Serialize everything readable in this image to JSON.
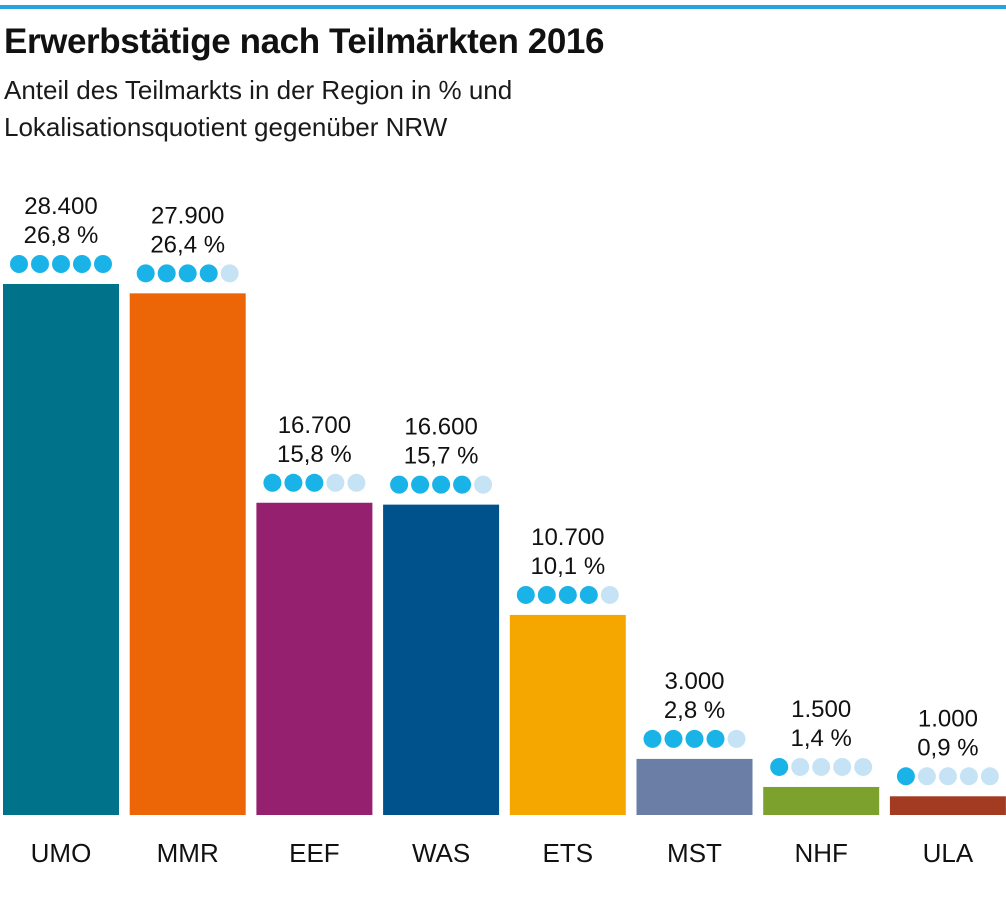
{
  "title": "Erwerbstätige nach Teilmärkten 2016",
  "subtitle_line1": "Anteil des Teilmarkts in der Region in % und",
  "subtitle_line2": "Lokalisationsquotient gegenüber NRW",
  "colors": {
    "accent_rule": "#29a3dd",
    "dot_full": "#1ab3e8",
    "dot_empty": "#c6e3f5"
  },
  "chart_data": {
    "type": "bar",
    "categories": [
      "UMO",
      "MMR",
      "EEF",
      "WAS",
      "ETS",
      "MST",
      "NHF",
      "ULA"
    ],
    "values": [
      28400,
      27900,
      16700,
      16600,
      10700,
      3000,
      1500,
      1000
    ],
    "value_labels": [
      "28.400",
      "27.900",
      "16.700",
      "16.600",
      "10.700",
      "3.000",
      "1.500",
      "1.000"
    ],
    "percent_labels": [
      "26,8 %",
      "26,4 %",
      "15,8 %",
      "15,7 %",
      "10,1 %",
      "2,8 %",
      "1,4 %",
      "0,9 %"
    ],
    "percent_values": [
      26.8,
      26.4,
      15.8,
      15.7,
      10.1,
      2.8,
      1.4,
      0.9
    ],
    "localization_rating": [
      5,
      4,
      3,
      4,
      4,
      4,
      1,
      1
    ],
    "rating_max": 5,
    "bar_colors": [
      "#00738a",
      "#ec6608",
      "#95206f",
      "#00528c",
      "#f5a700",
      "#6a7ea6",
      "#7ca22d",
      "#a33a22"
    ],
    "ylim": [
      0,
      28400
    ],
    "grid": false,
    "legend": "none"
  }
}
